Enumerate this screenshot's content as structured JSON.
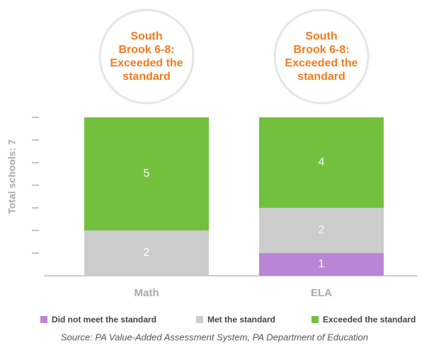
{
  "chart_data": {
    "type": "stacked_bar",
    "categories": [
      "Math",
      "ELA"
    ],
    "series": [
      {
        "name": "Did not meet the standard",
        "color": "#b985d4",
        "values": [
          0,
          1
        ]
      },
      {
        "name": "Met the standard",
        "color": "#cccccc",
        "values": [
          2,
          2
        ]
      },
      {
        "name": "Exceeded the standard",
        "color": "#72c03e",
        "values": [
          5,
          4
        ]
      }
    ],
    "annotations": [
      [
        "South",
        "Brook 6-8:",
        "Exceeded the",
        "standard"
      ],
      [
        "South",
        "Brook 6-8:",
        "Exceeded the",
        "standard"
      ]
    ],
    "ylabel": "Total schools: 7",
    "ylim": [
      0,
      7.5
    ],
    "yticks": [
      1,
      2,
      3,
      4,
      5,
      6,
      7
    ],
    "source": "Source: PA Value-Added Assessment System, PA Department of Education",
    "legend": "bottom"
  }
}
